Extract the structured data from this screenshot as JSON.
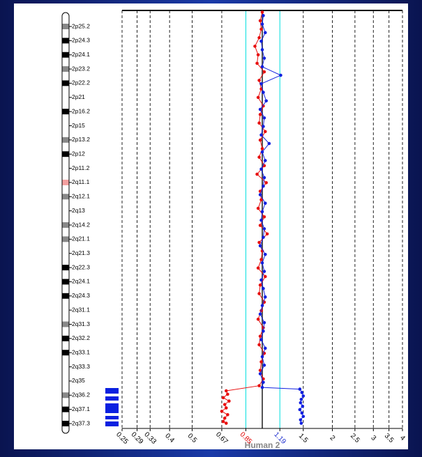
{
  "chart_data": {
    "type": "ratio-profile",
    "xlabel": "Human 2",
    "xscale": "log2",
    "xlim": [
      0.25,
      4
    ],
    "xticks": [
      0.25,
      0.29,
      0.33,
      0.4,
      0.5,
      0.67,
      0.85,
      1.19,
      1.5,
      2,
      2.5,
      3,
      3.5,
      4
    ],
    "thresholds": [
      {
        "value": 0.85,
        "color": "#e00000"
      },
      {
        "value": 1.19,
        "color": "#2030d0"
      }
    ],
    "baseline": 1,
    "ylim": [
      0,
      243
    ],
    "bands": [
      "2p25.2",
      "2p24.3",
      "2p24.1",
      "2p23.2",
      "2p22.2",
      "2p21",
      "2p16.2",
      "2p15",
      "2p13.2",
      "2p12",
      "2p11.2",
      "2q11.1",
      "2q12.1",
      "2q13",
      "2q14.2",
      "2q21.1",
      "2q21.3",
      "2q22.3",
      "2q24.1",
      "2q24.3",
      "2q31.1",
      "2q31.3",
      "2q32.2",
      "2q33.1",
      "2q33.3",
      "2q35",
      "2q36.2",
      "2q37.1",
      "2q37.3"
    ],
    "series": [
      {
        "color": "#e81010",
        "x": [
          1.0,
          0.98,
          0.99,
          0.97,
          0.93,
          0.96,
          0.95,
          1.02,
          0.97,
          0.99,
          0.96,
          1.01,
          0.98,
          0.97,
          1.03,
          0.98,
          1.0,
          0.97,
          1.02,
          0.95,
          1.04,
          0.98,
          0.99,
          0.96,
          1.02,
          0.98,
          1.05,
          0.97,
          1.0,
          0.99,
          0.96,
          1.03,
          0.98,
          0.97,
          1.02,
          0.99,
          0.96,
          1.01,
          0.98,
          0.97,
          1.02,
          0.99,
          0.98,
          1.01,
          0.97,
          0.7,
          0.71,
          0.68,
          0.72,
          0.69,
          0.7,
          0.67,
          0.71,
          0.69,
          0.68,
          0.7
        ],
        "y": [
          1,
          6,
          11,
          16,
          21,
          26,
          31,
          36,
          41,
          46,
          51,
          56,
          61,
          66,
          71,
          76,
          81,
          86,
          91,
          96,
          101,
          106,
          111,
          116,
          121,
          126,
          131,
          136,
          141,
          146,
          151,
          156,
          161,
          166,
          171,
          176,
          181,
          186,
          191,
          196,
          201,
          206,
          211,
          216,
          220,
          223,
          225,
          227,
          229,
          231,
          233,
          235,
          237,
          239,
          241,
          242
        ]
      },
      {
        "color": "#1020e0",
        "x": [
          1.01,
          1.0,
          1.03,
          0.99,
          1.0,
          1.02,
          1.0,
          1.2,
          0.99,
          1.01,
          1.04,
          0.98,
          1.02,
          1.01,
          0.99,
          1.07,
          1.0,
          1.03,
          0.99,
          1.02,
          1.01,
          0.98,
          1.03,
          1.0,
          0.99,
          1.02,
          1.01,
          0.98,
          1.03,
          1.0,
          1.02,
          0.99,
          1.01,
          1.03,
          1.0,
          0.98,
          1.02,
          1.01,
          0.99,
          1.03,
          1.0,
          1.02,
          0.98,
          1.01,
          1.0,
          1.45,
          1.48,
          1.5,
          1.47,
          1.46,
          1.49,
          1.45,
          1.48,
          1.5,
          1.46,
          1.47
        ],
        "y": [
          3,
          8,
          13,
          18,
          23,
          28,
          33,
          38,
          43,
          48,
          53,
          58,
          63,
          68,
          73,
          78,
          83,
          88,
          93,
          98,
          103,
          108,
          113,
          118,
          123,
          128,
          133,
          138,
          143,
          148,
          153,
          158,
          163,
          168,
          173,
          178,
          183,
          188,
          193,
          198,
          203,
          208,
          213,
          218,
          221,
          222,
          224,
          226,
          228,
          230,
          232,
          234,
          236,
          238,
          240,
          242
        ]
      }
    ]
  }
}
